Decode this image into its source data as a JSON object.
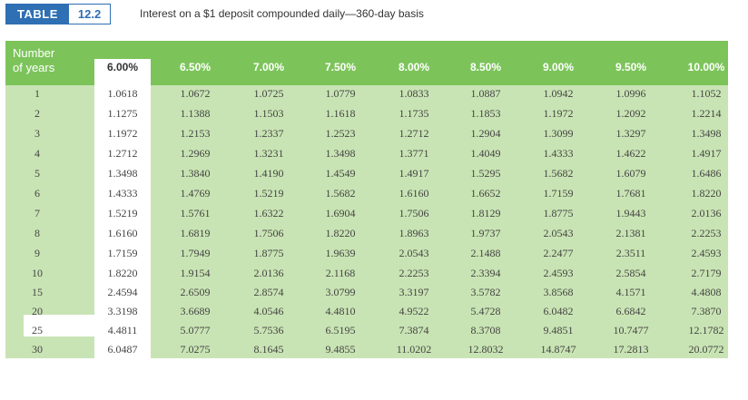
{
  "header": {
    "tag_word": "TABLE",
    "tag_number": "12.2",
    "caption": "Interest on a $1 deposit compounded daily—360-day basis"
  },
  "table": {
    "row_header_line1": "Number",
    "row_header_line2": "of years",
    "highlight_rate": "6.00%",
    "highlight_year": "25",
    "rates": [
      "6.00%",
      "6.50%",
      "7.00%",
      "7.50%",
      "8.00%",
      "8.50%",
      "9.00%",
      "9.50%",
      "10.00%"
    ],
    "rows": [
      {
        "year": "1",
        "values": [
          "1.0618",
          "1.0672",
          "1.0725",
          "1.0779",
          "1.0833",
          "1.0887",
          "1.0942",
          "1.0996",
          "1.1052"
        ]
      },
      {
        "year": "2",
        "values": [
          "1.1275",
          "1.1388",
          "1.1503",
          "1.1618",
          "1.1735",
          "1.1853",
          "1.1972",
          "1.2092",
          "1.2214"
        ]
      },
      {
        "year": "3",
        "values": [
          "1.1972",
          "1.2153",
          "1.2337",
          "1.2523",
          "1.2712",
          "1.2904",
          "1.3099",
          "1.3297",
          "1.3498"
        ]
      },
      {
        "year": "4",
        "values": [
          "1.2712",
          "1.2969",
          "1.3231",
          "1.3498",
          "1.3771",
          "1.4049",
          "1.4333",
          "1.4622",
          "1.4917"
        ]
      },
      {
        "year": "5",
        "values": [
          "1.3498",
          "1.3840",
          "1.4190",
          "1.4549",
          "1.4917",
          "1.5295",
          "1.5682",
          "1.6079",
          "1.6486"
        ]
      },
      {
        "year": "6",
        "values": [
          "1.4333",
          "1.4769",
          "1.5219",
          "1.5682",
          "1.6160",
          "1.6652",
          "1.7159",
          "1.7681",
          "1.8220"
        ]
      },
      {
        "year": "7",
        "values": [
          "1.5219",
          "1.5761",
          "1.6322",
          "1.6904",
          "1.7506",
          "1.8129",
          "1.8775",
          "1.9443",
          "2.0136"
        ]
      },
      {
        "year": "8",
        "values": [
          "1.6160",
          "1.6819",
          "1.7506",
          "1.8220",
          "1.8963",
          "1.9737",
          "2.0543",
          "2.1381",
          "2.2253"
        ]
      },
      {
        "year": "9",
        "values": [
          "1.7159",
          "1.7949",
          "1.8775",
          "1.9639",
          "2.0543",
          "2.1488",
          "2.2477",
          "2.3511",
          "2.4593"
        ]
      },
      {
        "year": "10",
        "values": [
          "1.8220",
          "1.9154",
          "2.0136",
          "2.1168",
          "2.2253",
          "2.3394",
          "2.4593",
          "2.5854",
          "2.7179"
        ]
      },
      {
        "year": "15",
        "values": [
          "2.4594",
          "2.6509",
          "2.8574",
          "3.0799",
          "3.3197",
          "3.5782",
          "3.8568",
          "4.1571",
          "4.4808"
        ]
      },
      {
        "year": "20",
        "values": [
          "3.3198",
          "3.6689",
          "4.0546",
          "4.4810",
          "4.9522",
          "5.4728",
          "6.0482",
          "6.6842",
          "7.3870"
        ]
      },
      {
        "year": "25",
        "values": [
          "4.4811",
          "5.0777",
          "5.7536",
          "6.5195",
          "7.3874",
          "8.3708",
          "9.4851",
          "10.7477",
          "12.1782"
        ]
      },
      {
        "year": "30",
        "values": [
          "6.0487",
          "7.0275",
          "8.1645",
          "9.4855",
          "11.0202",
          "12.8032",
          "14.8747",
          "17.2813",
          "20.0772"
        ]
      }
    ]
  }
}
